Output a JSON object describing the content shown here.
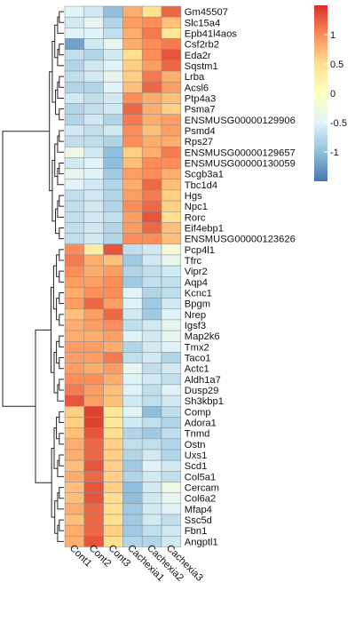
{
  "chart_data": {
    "type": "heatmap",
    "title": "",
    "columns": [
      "Cont1",
      "Cont2",
      "Cont3",
      "Cachexia1",
      "Cachexia2",
      "Cachexia3"
    ],
    "rows": [
      {
        "gene": "Gm45507",
        "values": [
          -0.5,
          -0.6,
          -1.0,
          0.8,
          0.5,
          1.2
        ]
      },
      {
        "gene": "Slc15a4",
        "values": [
          -0.6,
          -0.4,
          -0.8,
          0.9,
          1.0,
          0.7
        ]
      },
      {
        "gene": "Epb41l4aos",
        "values": [
          -0.5,
          -0.5,
          -0.7,
          0.8,
          1.1,
          0.4
        ]
      },
      {
        "gene": "Csf2rb2",
        "values": [
          -1.2,
          -0.6,
          -0.4,
          0.8,
          1.0,
          1.1
        ]
      },
      {
        "gene": "Eda2r",
        "values": [
          -0.7,
          -0.8,
          -0.6,
          0.5,
          1.0,
          1.3
        ]
      },
      {
        "gene": "Sqstm1",
        "values": [
          -0.8,
          -0.6,
          -0.5,
          0.6,
          0.9,
          1.2
        ]
      },
      {
        "gene": "Lrba",
        "values": [
          -0.7,
          -0.6,
          -0.4,
          0.6,
          1.1,
          0.8
        ]
      },
      {
        "gene": "Acsl6",
        "values": [
          -0.8,
          -0.8,
          -0.5,
          0.7,
          1.2,
          0.9
        ]
      },
      {
        "gene": "Ptp4a3",
        "values": [
          -0.6,
          -0.7,
          -0.6,
          1.0,
          0.8,
          0.7
        ]
      },
      {
        "gene": "Psma7",
        "values": [
          -0.8,
          -0.7,
          -0.6,
          1.2,
          0.8,
          0.6
        ]
      },
      {
        "gene": "ENSMUSG00000129906",
        "values": [
          -0.8,
          -0.6,
          -0.8,
          1.1,
          0.8,
          0.9
        ]
      },
      {
        "gene": "Psmd4",
        "values": [
          -0.6,
          -0.7,
          -0.6,
          1.0,
          0.7,
          0.9
        ]
      },
      {
        "gene": "Rps27",
        "values": [
          -0.7,
          -0.7,
          -0.8,
          1.0,
          0.8,
          0.8
        ]
      },
      {
        "gene": "ENSMUSG00000129657",
        "values": [
          -0.3,
          -0.6,
          -1.0,
          0.6,
          0.8,
          1.1
        ]
      },
      {
        "gene": "ENSMUSG00000130059",
        "values": [
          -0.6,
          -0.5,
          -1.0,
          0.7,
          1.0,
          1.0
        ]
      },
      {
        "gene": "Scgb3a1",
        "values": [
          -0.4,
          -0.5,
          -0.9,
          0.9,
          1.0,
          0.8
        ]
      },
      {
        "gene": "Tbc1d4",
        "values": [
          -0.5,
          -0.6,
          -0.8,
          0.8,
          1.2,
          0.7
        ]
      },
      {
        "gene": "Hgs",
        "values": [
          -0.7,
          -0.6,
          -0.8,
          0.9,
          1.1,
          0.6
        ]
      },
      {
        "gene": "Npc1",
        "values": [
          -0.7,
          -0.6,
          -0.8,
          1.0,
          1.2,
          0.6
        ]
      },
      {
        "gene": "Rorc",
        "values": [
          -0.7,
          -0.6,
          -0.7,
          0.9,
          1.3,
          0.5
        ]
      },
      {
        "gene": "Eif4ebp1",
        "values": [
          -0.7,
          -0.6,
          -0.8,
          0.9,
          1.2,
          0.7
        ]
      },
      {
        "gene": "ENSMUSG00000123626",
        "values": [
          -0.7,
          -0.6,
          -0.8,
          1.0,
          1.0,
          0.7
        ]
      },
      {
        "gene": "Pcp4l1",
        "values": [
          1.0,
          0.3,
          1.3,
          -0.7,
          -0.6,
          -0.2
        ]
      },
      {
        "gene": "Tfrc",
        "values": [
          1.1,
          0.8,
          0.7,
          -0.9,
          -0.6,
          -0.4
        ]
      },
      {
        "gene": "Vipr2",
        "values": [
          1.0,
          0.8,
          0.9,
          -0.8,
          -0.7,
          -0.6
        ]
      },
      {
        "gene": "Aqp4",
        "values": [
          0.9,
          0.9,
          1.0,
          -0.9,
          -0.7,
          -0.7
        ]
      },
      {
        "gene": "Kcnc1",
        "values": [
          0.8,
          1.0,
          1.0,
          -0.5,
          -0.8,
          -0.7
        ]
      },
      {
        "gene": "Bpgm",
        "values": [
          0.9,
          1.2,
          0.9,
          -0.5,
          -0.9,
          -0.6
        ]
      },
      {
        "gene": "Nrep",
        "values": [
          0.7,
          0.9,
          1.2,
          -0.6,
          -0.9,
          -0.5
        ]
      },
      {
        "gene": "Igsf3",
        "values": [
          0.8,
          0.9,
          1.0,
          -0.7,
          -0.6,
          -0.4
        ]
      },
      {
        "gene": "Map2k6",
        "values": [
          0.8,
          0.8,
          0.9,
          -0.5,
          -0.6,
          -0.4
        ]
      },
      {
        "gene": "Tmx2",
        "values": [
          0.9,
          0.9,
          0.8,
          -0.8,
          -0.6,
          -0.5
        ]
      },
      {
        "gene": "Taco1",
        "values": [
          0.9,
          0.9,
          1.1,
          -0.7,
          -0.6,
          -0.8
        ]
      },
      {
        "gene": "Actc1",
        "values": [
          0.9,
          0.8,
          0.9,
          -0.4,
          -0.7,
          -0.6
        ]
      },
      {
        "gene": "Aldh1a7",
        "values": [
          1.0,
          1.0,
          0.8,
          -0.5,
          -0.6,
          -0.7
        ]
      },
      {
        "gene": "Dusp29",
        "values": [
          1.1,
          0.9,
          0.7,
          -0.5,
          -0.7,
          -0.5
        ]
      },
      {
        "gene": "Sh3kbp1",
        "values": [
          1.3,
          0.9,
          0.7,
          -0.6,
          -0.7,
          -0.6
        ]
      },
      {
        "gene": "Comp",
        "values": [
          0.6,
          1.4,
          0.4,
          -0.5,
          -1.0,
          -0.7
        ]
      },
      {
        "gene": "Adora1",
        "values": [
          0.6,
          1.4,
          0.4,
          -0.6,
          -0.7,
          -0.8
        ]
      },
      {
        "gene": "Tnmd",
        "values": [
          0.7,
          1.3,
          0.5,
          -0.8,
          -0.9,
          -0.7
        ]
      },
      {
        "gene": "Ostn",
        "values": [
          0.8,
          1.2,
          0.6,
          -0.7,
          -0.7,
          -0.8
        ]
      },
      {
        "gene": "Uxs1",
        "values": [
          0.8,
          1.2,
          0.6,
          -0.8,
          -0.6,
          -0.8
        ]
      },
      {
        "gene": "Scd1",
        "values": [
          0.7,
          1.3,
          0.6,
          -0.9,
          -0.5,
          -0.6
        ]
      },
      {
        "gene": "Col5a1",
        "values": [
          0.8,
          1.2,
          0.6,
          -0.8,
          -0.6,
          -0.7
        ]
      },
      {
        "gene": "Cercam",
        "values": [
          0.7,
          1.3,
          0.6,
          -1.0,
          -0.6,
          -0.3
        ]
      },
      {
        "gene": "Col6a2",
        "values": [
          0.7,
          1.3,
          0.5,
          -1.0,
          -0.6,
          -0.4
        ]
      },
      {
        "gene": "Mfap4",
        "values": [
          0.8,
          1.2,
          0.5,
          -0.9,
          -0.6,
          -0.5
        ]
      },
      {
        "gene": "Ssc5d",
        "values": [
          0.7,
          1.2,
          0.5,
          -0.9,
          -0.6,
          -0.7
        ]
      },
      {
        "gene": "Fbn1",
        "values": [
          0.8,
          1.2,
          0.6,
          -0.9,
          -0.7,
          -0.6
        ]
      },
      {
        "gene": "Angptl1",
        "values": [
          0.8,
          1.3,
          0.5,
          -0.8,
          -0.8,
          -0.6
        ]
      }
    ],
    "color_scale": {
      "min": -1.5,
      "max": 1.5,
      "colors": [
        "#4575b4",
        "#91bfdb",
        "#e0f3f8",
        "#ffffbf",
        "#fee090",
        "#fc8d59",
        "#d73027"
      ]
    },
    "legend": {
      "position": "top-right",
      "ticks": [
        1,
        0.5,
        0,
        -0.5,
        -1
      ],
      "tick_labels": [
        "1",
        "0.5",
        "0",
        "-0.5",
        "-1"
      ]
    },
    "row_dendrogram": true,
    "grid": false
  }
}
